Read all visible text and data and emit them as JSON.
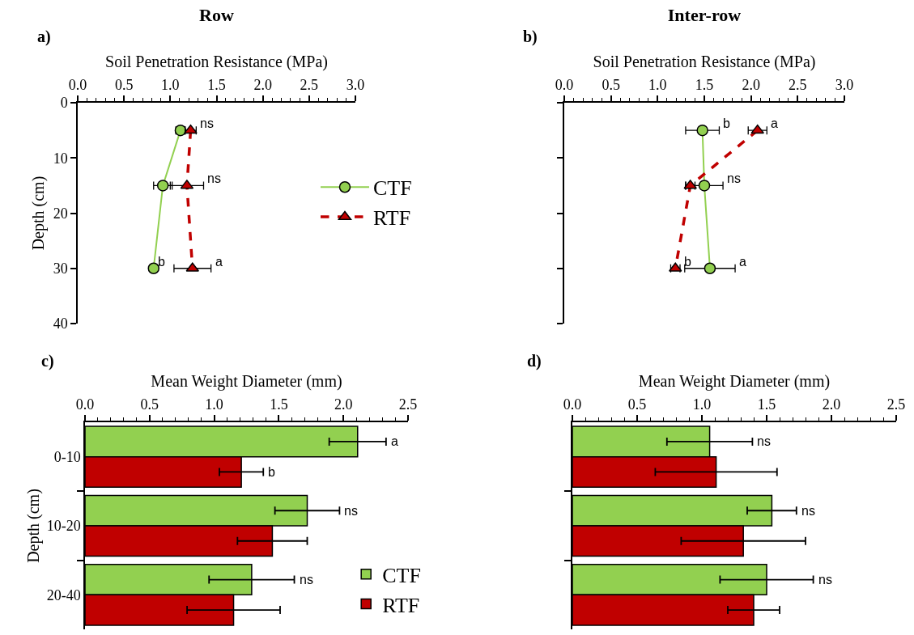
{
  "chart_data": [
    {
      "type": "line",
      "title": "Row",
      "annotations": [
        "a)"
      ],
      "xlabel": "Soil Penetration Resistance (MPa)",
      "ylabel": "Depth (cm)",
      "xlim": [
        0,
        3
      ],
      "xticks": [
        {
          "value": 0,
          "label": "0.0"
        },
        {
          "value": 0.5,
          "label": "0.5"
        },
        {
          "value": 1,
          "label": "1.0"
        },
        {
          "value": 1.5,
          "label": "1.5"
        },
        {
          "value": 2,
          "label": "2.0"
        },
        {
          "value": 2.5,
          "label": "2.5"
        },
        {
          "value": 3,
          "label": "3.0"
        }
      ],
      "ylim": [
        40,
        0
      ],
      "yticks": [
        0,
        10,
        20,
        30,
        40
      ],
      "grid": false,
      "legend": "right",
      "series": [
        {
          "name": "CTF",
          "color": "#92d050",
          "marker": "circle",
          "line_style": "solid",
          "x": [
            1.11,
            0.92,
            0.82
          ],
          "values": [
            5,
            15,
            30
          ],
          "xerrors": [
            0.05,
            0.1,
            null
          ],
          "value_labels": [
            null,
            null,
            "b"
          ]
        },
        {
          "name": "RTF",
          "color": "#c00000",
          "marker": "triangle",
          "line_style": "dashed",
          "x": [
            1.22,
            1.18,
            1.24
          ],
          "values": [
            5,
            15,
            30
          ],
          "xerrors": [
            0.06,
            0.18,
            0.2
          ],
          "value_labels": [
            "ns",
            "ns",
            "a"
          ]
        }
      ]
    },
    {
      "type": "line",
      "title": "Inter-row",
      "annotations": [
        "b)"
      ],
      "xlabel": "Soil Penetration Resistance (MPa)",
      "xlim": [
        0,
        3
      ],
      "xticks": [
        {
          "value": 0,
          "label": "0.0"
        },
        {
          "value": 0.5,
          "label": "0.5"
        },
        {
          "value": 1,
          "label": "1.0"
        },
        {
          "value": 1.5,
          "label": "1.5"
        },
        {
          "value": 2,
          "label": "2.0"
        },
        {
          "value": 2.5,
          "label": "2.5"
        },
        {
          "value": 3,
          "label": "3.0"
        }
      ],
      "ylim": [
        40,
        0
      ],
      "yticks": [
        0,
        10,
        20,
        30,
        40
      ],
      "tick_labels": "x",
      "grid": false,
      "legend": false,
      "series": [
        {
          "color": "#92d050",
          "marker": "circle",
          "line_style": "solid",
          "x": [
            1.48,
            1.5,
            1.56
          ],
          "values": [
            5,
            15,
            30
          ],
          "xerrors": [
            0.18,
            0.2,
            0.27
          ],
          "value_labels": [
            "b",
            "ns",
            "a"
          ]
        },
        {
          "color": "#c00000",
          "marker": "triangle",
          "line_style": "dashed",
          "x": [
            2.07,
            1.35,
            1.19
          ],
          "values": [
            5,
            15,
            30
          ],
          "xerrors": [
            0.1,
            0.05,
            0.05
          ],
          "value_labels": [
            "a",
            null,
            "b"
          ]
        }
      ]
    },
    {
      "type": "bar",
      "orientation": "horizontal",
      "annotations": [
        "c)",
        "ns"
      ],
      "xlabel": "Mean Weight Diameter (mm)",
      "ylabel": "Depth (cm)",
      "categories": [
        "0-10",
        "10-20",
        "20-40"
      ],
      "xlim": [
        0,
        2.5
      ],
      "xticks": [
        {
          "value": 0,
          "label": "0.0"
        },
        {
          "value": 0.5,
          "label": "0.5"
        },
        {
          "value": 1,
          "label": "1.0"
        },
        {
          "value": 1.5,
          "label": "1.5"
        },
        {
          "value": 2,
          "label": "2.0"
        },
        {
          "value": 2.5,
          "label": "2.5"
        }
      ],
      "grid": false,
      "legend": "bottom right",
      "series": [
        {
          "name": "CTF",
          "color": "#92d050",
          "values": [
            2.11,
            1.72,
            1.29
          ],
          "errors": [
            0.22,
            0.25,
            0.33
          ],
          "value_labels": [
            "a",
            "ns",
            null
          ]
        },
        {
          "name": "RTF",
          "color": "#c00000",
          "values": [
            1.21,
            1.45,
            1.15
          ],
          "errors": [
            0.17,
            0.27,
            0.36
          ],
          "value_labels": [
            "b",
            null,
            null
          ]
        }
      ]
    },
    {
      "type": "bar",
      "orientation": "horizontal",
      "annotations": [
        "d)",
        "ns",
        "ns"
      ],
      "xlabel": "Mean Weight Diameter (mm)",
      "categories": [
        null,
        null,
        null
      ],
      "xlim": [
        0,
        2.5
      ],
      "xticks": [
        {
          "value": 0,
          "label": "0.0"
        },
        {
          "value": 0.5,
          "label": "0.5"
        },
        {
          "value": 1,
          "label": "1.0"
        },
        {
          "value": 1.5,
          "label": "1.5"
        },
        {
          "value": 2,
          "label": "2.0"
        },
        {
          "value": 2.5,
          "label": "2.5"
        }
      ],
      "tick_labels": "x",
      "grid": false,
      "legend": false,
      "series": [
        {
          "color": "#92d050",
          "values": [
            1.06,
            1.54,
            1.5
          ],
          "errors": [
            0.33,
            0.19,
            0.36
          ],
          "value_labels": [
            null,
            "ns",
            null
          ]
        },
        {
          "color": "#c00000",
          "values": [
            1.11,
            1.32,
            1.4
          ],
          "errors": [
            0.47,
            0.48,
            0.2
          ],
          "value_labels": [
            null,
            null,
            null
          ]
        }
      ]
    }
  ]
}
